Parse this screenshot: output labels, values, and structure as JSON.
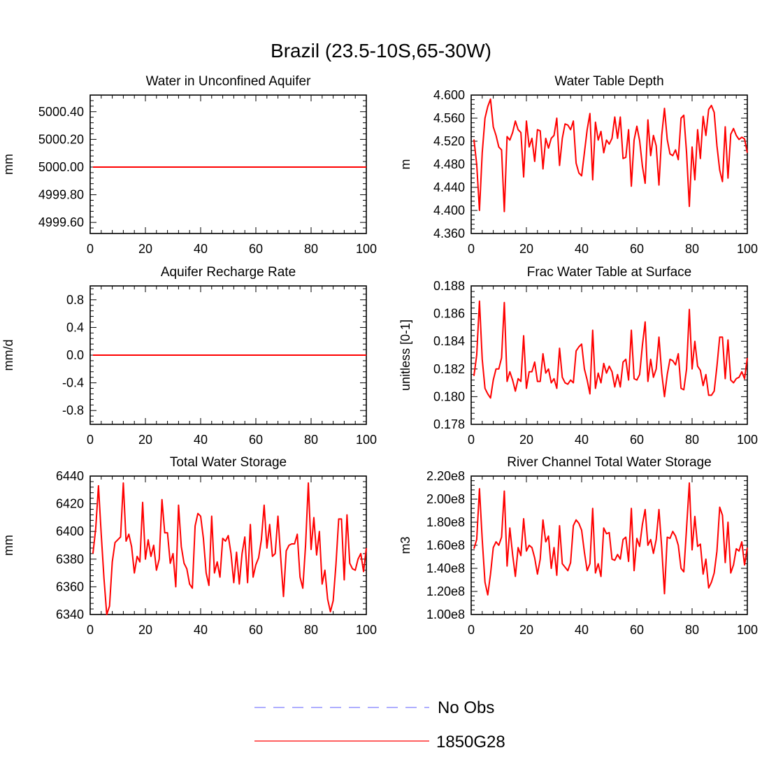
{
  "figure": {
    "title": "Brazil (23.5-10S,65-30W)",
    "series_color": "#ff0000",
    "obs_color": "#7f7fff"
  },
  "legend": {
    "items": [
      {
        "label": "No Obs",
        "style": "dashed",
        "color": "#7f7fff"
      },
      {
        "label": "1850G28",
        "style": "solid",
        "color": "#ff0000"
      }
    ]
  },
  "chart_data": [
    {
      "type": "line",
      "title": "Water in Unconfined Aquifer",
      "xlabel": "",
      "ylabel": "mm",
      "xlim": [
        0,
        100
      ],
      "ylim": [
        4999.52,
        5000.52
      ],
      "xticks": [
        0,
        20,
        40,
        60,
        80,
        100
      ],
      "xtick_labels": [
        "0",
        "20",
        "40",
        "60",
        "80",
        "100"
      ],
      "yticks": [
        4999.6,
        4999.8,
        5000.0,
        5000.2,
        5000.4
      ],
      "ytick_labels": [
        "4999.60",
        "4999.80",
        "5000.00",
        "5000.20",
        "5000.40"
      ],
      "grid": false,
      "series": [
        {
          "values": [
            5000.0,
            5000.0
          ],
          "x": [
            1,
            100
          ]
        }
      ]
    },
    {
      "type": "line",
      "title": "Water Table Depth",
      "xlabel": "",
      "ylabel": "m",
      "xlim": [
        0,
        100
      ],
      "ylim": [
        4.36,
        4.6
      ],
      "xticks": [
        0,
        20,
        40,
        60,
        80,
        100
      ],
      "xtick_labels": [
        "0",
        "20",
        "40",
        "60",
        "80",
        "100"
      ],
      "yticks": [
        4.36,
        4.4,
        4.44,
        4.48,
        4.52,
        4.56,
        4.6
      ],
      "ytick_labels": [
        "4.360",
        "4.400",
        "4.440",
        "4.480",
        "4.520",
        "4.560",
        "4.600"
      ],
      "grid": false,
      "series": [
        {
          "values": [
            4.523,
            4.48,
            4.4,
            4.5,
            4.56,
            4.58,
            4.593,
            4.545,
            4.53,
            4.51,
            4.505,
            4.398,
            4.528,
            4.522,
            4.535,
            4.555,
            4.54,
            4.535,
            4.458,
            4.555,
            4.51,
            4.525,
            4.485,
            4.54,
            4.538,
            4.472,
            4.525,
            4.508,
            4.525,
            4.53,
            4.56,
            4.478,
            4.525,
            4.55,
            4.548,
            4.54,
            4.555,
            4.482,
            4.465,
            4.46,
            4.5,
            4.54,
            4.568,
            4.453,
            4.553,
            4.522,
            4.537,
            4.5,
            4.522,
            4.515,
            4.525,
            4.562,
            4.525,
            4.562,
            4.49,
            4.492,
            4.54,
            4.442,
            4.522,
            4.546,
            4.521,
            4.477,
            4.447,
            4.557,
            4.495,
            4.53,
            4.512,
            4.444,
            4.53,
            4.577,
            4.523,
            4.498,
            4.495,
            4.505,
            4.488,
            4.56,
            4.565,
            4.5,
            4.407,
            4.51,
            4.453,
            4.54,
            4.49,
            4.563,
            4.53,
            4.575,
            4.582,
            4.57,
            4.512,
            4.47,
            4.45,
            4.545,
            4.456,
            4.532,
            4.542,
            4.53,
            4.523,
            4.527,
            4.524,
            4.5
          ]
        }
      ]
    },
    {
      "type": "line",
      "title": "Aquifer Recharge Rate",
      "xlabel": "",
      "ylabel": "mm/d",
      "xlim": [
        0,
        100
      ],
      "ylim": [
        -1.0,
        1.0
      ],
      "xticks": [
        0,
        20,
        40,
        60,
        80,
        100
      ],
      "xtick_labels": [
        "0",
        "20",
        "40",
        "60",
        "80",
        "100"
      ],
      "yticks": [
        -0.8,
        -0.4,
        0.0,
        0.4,
        0.8
      ],
      "ytick_labels": [
        "-0.8",
        "-0.4",
        "0.0",
        "0.4",
        "0.8"
      ],
      "grid": false,
      "series": [
        {
          "values": [
            0.0,
            0.0
          ],
          "x": [
            1,
            100
          ]
        }
      ]
    },
    {
      "type": "line",
      "title": "Frac Water Table at Surface",
      "xlabel": "",
      "ylabel": "unitless [0-1]",
      "xlim": [
        0,
        100
      ],
      "ylim": [
        0.178,
        0.188
      ],
      "xticks": [
        0,
        20,
        40,
        60,
        80,
        100
      ],
      "xtick_labels": [
        "0",
        "20",
        "40",
        "60",
        "80",
        "100"
      ],
      "yticks": [
        0.178,
        0.18,
        0.182,
        0.184,
        0.186,
        0.188
      ],
      "ytick_labels": [
        "0.178",
        "0.180",
        "0.182",
        "0.184",
        "0.186",
        "0.188"
      ],
      "grid": false,
      "series": [
        {
          "values": [
            0.1815,
            0.183,
            0.1869,
            0.1827,
            0.1806,
            0.1802,
            0.1799,
            0.1812,
            0.182,
            0.182,
            0.1828,
            0.1868,
            0.1811,
            0.1818,
            0.1812,
            0.1804,
            0.1813,
            0.1811,
            0.1844,
            0.1806,
            0.1818,
            0.1818,
            0.1825,
            0.1811,
            0.1811,
            0.1831,
            0.1817,
            0.182,
            0.181,
            0.1813,
            0.1806,
            0.1835,
            0.1814,
            0.181,
            0.1809,
            0.1812,
            0.181,
            0.1833,
            0.1836,
            0.1838,
            0.182,
            0.1812,
            0.1802,
            0.1848,
            0.1806,
            0.1817,
            0.181,
            0.1824,
            0.1817,
            0.1822,
            0.1818,
            0.1807,
            0.1816,
            0.1807,
            0.1825,
            0.1827,
            0.1812,
            0.1848,
            0.1813,
            0.1812,
            0.1816,
            0.1837,
            0.1854,
            0.1811,
            0.1827,
            0.1814,
            0.182,
            0.1843,
            0.1817,
            0.18,
            0.1816,
            0.1827,
            0.1826,
            0.1823,
            0.1831,
            0.1806,
            0.1805,
            0.182,
            0.1863,
            0.182,
            0.184,
            0.1822,
            0.1819,
            0.1808,
            0.1816,
            0.1801,
            0.1801,
            0.1804,
            0.1822,
            0.1843,
            0.1843,
            0.1813,
            0.1841,
            0.1812,
            0.181,
            0.1813,
            0.1814,
            0.1818,
            0.1813,
            0.1828
          ]
        }
      ]
    },
    {
      "type": "line",
      "title": "Total Water Storage",
      "xlabel": "",
      "ylabel": "mm",
      "xlim": [
        0,
        100
      ],
      "ylim": [
        6340,
        6440
      ],
      "xticks": [
        0,
        20,
        40,
        60,
        80,
        100
      ],
      "xtick_labels": [
        "0",
        "20",
        "40",
        "60",
        "80",
        "100"
      ],
      "yticks": [
        6340,
        6360,
        6380,
        6400,
        6420,
        6440
      ],
      "ytick_labels": [
        "6340",
        "6360",
        "6380",
        "6400",
        "6420",
        "6440"
      ],
      "grid": false,
      "series": [
        {
          "values": [
            6384,
            6402,
            6433,
            6398,
            6366,
            6340,
            6346,
            6378,
            6392,
            6394,
            6396,
            6435,
            6393,
            6398,
            6389,
            6370,
            6382,
            6378,
            6421,
            6380,
            6394,
            6382,
            6390,
            6372,
            6380,
            6423,
            6399,
            6399,
            6377,
            6384,
            6360,
            6419,
            6389,
            6377,
            6373,
            6362,
            6359,
            6404,
            6413,
            6411,
            6395,
            6370,
            6361,
            6411,
            6370,
            6378,
            6367,
            6395,
            6393,
            6397,
            6384,
            6363,
            6385,
            6362,
            6384,
            6396,
            6363,
            6405,
            6367,
            6376,
            6381,
            6394,
            6419,
            6388,
            6405,
            6382,
            6384,
            6411,
            6381,
            6353,
            6386,
            6390,
            6391,
            6391,
            6398,
            6367,
            6359,
            6390,
            6435,
            6387,
            6410,
            6383,
            6400,
            6362,
            6372,
            6351,
            6342,
            6350,
            6376,
            6409,
            6409,
            6365,
            6412,
            6377,
            6373,
            6372,
            6380,
            6384,
            6371,
            6388
          ]
        }
      ]
    },
    {
      "type": "line",
      "title": "River Channel Total Water Storage",
      "xlabel": "",
      "ylabel": "m3",
      "xlim": [
        0,
        100
      ],
      "ylim": [
        100000000,
        220000000
      ],
      "xticks": [
        0,
        20,
        40,
        60,
        80,
        100
      ],
      "xtick_labels": [
        "0",
        "20",
        "40",
        "60",
        "80",
        "100"
      ],
      "yticks": [
        100000000,
        120000000,
        140000000,
        160000000,
        180000000,
        200000000,
        220000000
      ],
      "ytick_labels": [
        "1.00e8",
        "1.20e8",
        "1.40e8",
        "1.60e8",
        "1.80e8",
        "2.00e8",
        "2.20e8"
      ],
      "grid": false,
      "series": [
        {
          "values": [
            157000000,
            165000000,
            209000000,
            165000000,
            128000000,
            117000000,
            135000000,
            158000000,
            163000000,
            160000000,
            167000000,
            207000000,
            142000000,
            175000000,
            152000000,
            133000000,
            158000000,
            151000000,
            183000000,
            155000000,
            160000000,
            158000000,
            149000000,
            135000000,
            148000000,
            182000000,
            163000000,
            168000000,
            140000000,
            158000000,
            134000000,
            177000000,
            144000000,
            141000000,
            138000000,
            145000000,
            177000000,
            182000000,
            179000000,
            173000000,
            154000000,
            138000000,
            144000000,
            192000000,
            136000000,
            144000000,
            133000000,
            175000000,
            170000000,
            171000000,
            148000000,
            147000000,
            152000000,
            148000000,
            165000000,
            167000000,
            146000000,
            192000000,
            138000000,
            166000000,
            159000000,
            178000000,
            191000000,
            160000000,
            165000000,
            153000000,
            165000000,
            191000000,
            158000000,
            118000000,
            167000000,
            166000000,
            172000000,
            168000000,
            160000000,
            140000000,
            137000000,
            175000000,
            214000000,
            156000000,
            185000000,
            159000000,
            161000000,
            135000000,
            148000000,
            123000000,
            128000000,
            136000000,
            155000000,
            193000000,
            186000000,
            145000000,
            180000000,
            136000000,
            143000000,
            157000000,
            155000000,
            163000000,
            143000000,
            158000000
          ]
        }
      ]
    }
  ]
}
